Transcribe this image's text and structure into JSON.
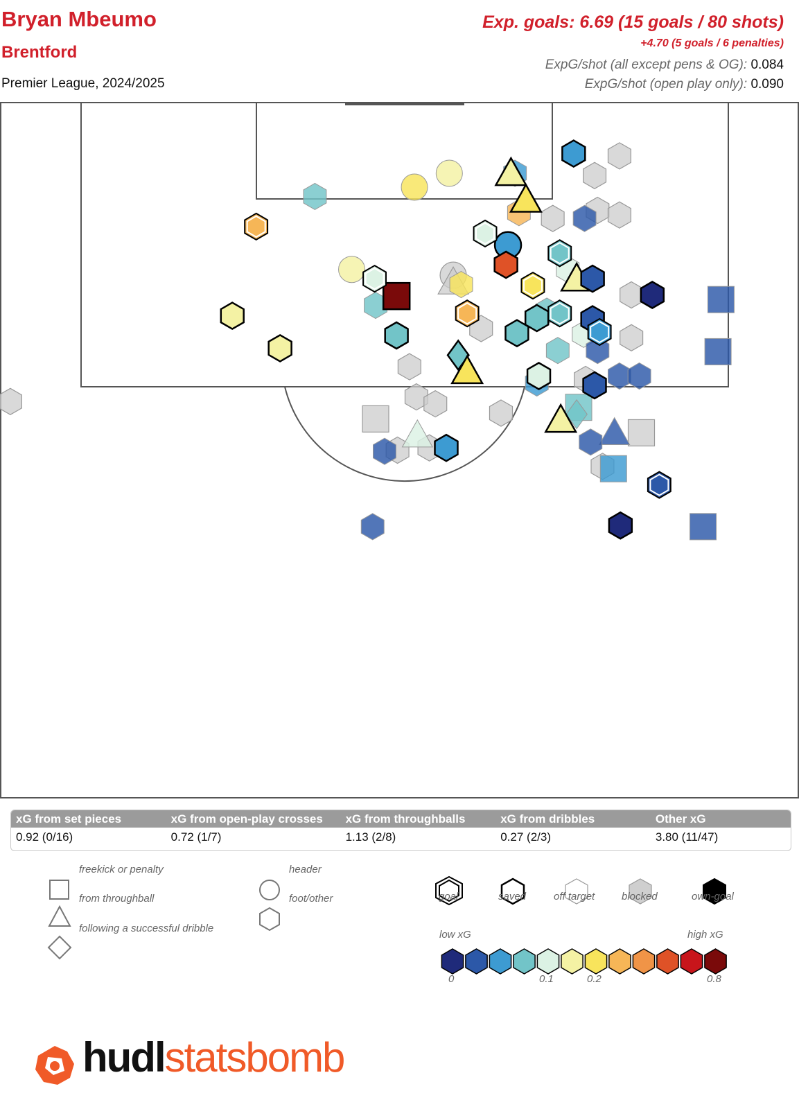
{
  "header": {
    "player": "Bryan Mbeumo",
    "team": "Brentford",
    "competition": "Premier League, 2024/2025",
    "xg_summary": "Exp. goals: 6.69 (15 goals / 80 shots)",
    "penalty_summary": "+4.70 (5 goals / 6 penalties)",
    "rate1_label": "ExpG/shot (all except pens & OG):",
    "rate1_value": "0.084",
    "rate2_label": "ExpG/shot (open play only):",
    "rate2_value": "0.090"
  },
  "stats_table": {
    "headers": [
      "xG from set pieces",
      "xG from open-play crosses",
      "xG from throughballs",
      "xG from dribbles",
      "Other xG"
    ],
    "values": [
      "0.92 (0/16)",
      "0.72 (1/7)",
      "1.13 (2/8)",
      "0.27 (2/3)",
      "3.80 (11/47)"
    ]
  },
  "legend": {
    "shape_types": [
      {
        "icon": "square-icon",
        "label": "freekick or penalty"
      },
      {
        "icon": "triangle-icon",
        "label": "from throughball"
      },
      {
        "icon": "diamond-icon",
        "label": "following a successful dribble"
      },
      {
        "icon": "circle-icon",
        "label": "header"
      },
      {
        "icon": "hexagon-icon",
        "label": "foot/other"
      }
    ],
    "outcomes": [
      "goal",
      "saved",
      "off target",
      "blocked",
      "own-goal"
    ],
    "scale_low": "low xG",
    "scale_high": "high xG",
    "scale_colors": [
      "#1f2a7a",
      "#2c58a8",
      "#3d9bd2",
      "#72c4c8",
      "#dcf2e4",
      "#f4f2a4",
      "#f8e45c",
      "#f6b657",
      "#f09447",
      "#df5227",
      "#c8151b",
      "#7a0a0a"
    ],
    "scale_ticks": [
      "0",
      "0.1",
      "0.2",
      "0.8"
    ]
  },
  "logo": {
    "hudl": "hudl",
    "statsbomb": "statsbomb"
  },
  "chart_data": {
    "type": "scatter",
    "x_axis": "pitch width (0-80)",
    "y_axis": "distance from goal line (0-60)",
    "points": [
      {
        "x": 72.0,
        "y": 21.5,
        "shape": "square",
        "outcome": "offtarget",
        "color": "#2c58a8"
      },
      {
        "x": 70.5,
        "y": 36.6,
        "shape": "square",
        "outcome": "offtarget",
        "color": "#2c58a8"
      },
      {
        "x": 57.5,
        "y": 4.4,
        "shape": "hexagon",
        "outcome": "saved",
        "color": "#3d9bd2"
      },
      {
        "x": 59.6,
        "y": 6.3,
        "shape": "hexagon",
        "outcome": "blocked",
        "color": "#cccccc"
      },
      {
        "x": 62.1,
        "y": 4.6,
        "shape": "hexagon",
        "outcome": "blocked",
        "color": "#cccccc"
      },
      {
        "x": 59.9,
        "y": 9.3,
        "shape": "hexagon",
        "outcome": "blocked",
        "color": "#cccccc"
      },
      {
        "x": 51.2,
        "y": 6.1,
        "shape": "triangle",
        "outcome": "saved",
        "color": "#f4f2a4"
      },
      {
        "x": 52.7,
        "y": 8.4,
        "shape": "triangle",
        "outcome": "saved",
        "color": "#f8e45c"
      },
      {
        "x": 52.0,
        "y": 9.5,
        "shape": "hexagon",
        "outcome": "offtarget",
        "color": "#f6b657"
      },
      {
        "x": 41.5,
        "y": 7.3,
        "shape": "circle",
        "outcome": "offtarget",
        "color": "#f8e45c"
      },
      {
        "x": 45.0,
        "y": 6.1,
        "shape": "circle",
        "outcome": "offtarget",
        "color": "#f4f2a4"
      },
      {
        "x": 31.5,
        "y": 8.1,
        "shape": "hexagon",
        "outcome": "offtarget",
        "color": "#72c4c8"
      },
      {
        "x": 55.4,
        "y": 10.0,
        "shape": "hexagon",
        "outcome": "blocked",
        "color": "#cccccc"
      },
      {
        "x": 58.6,
        "y": 10.0,
        "shape": "hexagon",
        "outcome": "offtarget",
        "color": "#2c58a8"
      },
      {
        "x": 25.6,
        "y": 10.7,
        "shape": "hexagon",
        "outcome": "goal",
        "color": "#f6b657"
      },
      {
        "x": 48.6,
        "y": 11.3,
        "shape": "hexagon",
        "outcome": "goal",
        "color": "#dcf2e4"
      },
      {
        "x": 50.9,
        "y": 12.3,
        "shape": "circle",
        "outcome": "saved",
        "color": "#3d9bd2"
      },
      {
        "x": 56.1,
        "y": 13.0,
        "shape": "hexagon",
        "outcome": "goal",
        "color": "#72c4c8"
      },
      {
        "x": 50.7,
        "y": 14.0,
        "shape": "hexagon",
        "outcome": "saved",
        "color": "#df5227"
      },
      {
        "x": 35.2,
        "y": 14.4,
        "shape": "circle",
        "outcome": "offtarget",
        "color": "#f4f2a4"
      },
      {
        "x": 37.5,
        "y": 15.2,
        "shape": "hexagon",
        "outcome": "goal",
        "color": "#dcf2e4"
      },
      {
        "x": 45.4,
        "y": 14.9,
        "shape": "circle",
        "outcome": "blocked",
        "color": "#cccccc"
      },
      {
        "x": 45.4,
        "y": 15.5,
        "shape": "triangle",
        "outcome": "blocked",
        "color": "#cccccc"
      },
      {
        "x": 46.2,
        "y": 15.7,
        "shape": "hexagon",
        "outcome": "offtarget",
        "color": "#f8e45c"
      },
      {
        "x": 53.4,
        "y": 15.8,
        "shape": "hexagon",
        "outcome": "goal",
        "color": "#f8e45c"
      },
      {
        "x": 57.8,
        "y": 15.2,
        "shape": "triangle",
        "outcome": "saved",
        "color": "#f4f2a4"
      },
      {
        "x": 59.4,
        "y": 15.2,
        "shape": "hexagon",
        "outcome": "saved",
        "color": "#2c58a8"
      },
      {
        "x": 56.9,
        "y": 14.4,
        "shape": "hexagon",
        "outcome": "offtarget",
        "color": "#dcf2e4"
      },
      {
        "x": 63.3,
        "y": 16.6,
        "shape": "hexagon",
        "outcome": "blocked",
        "color": "#cccccc"
      },
      {
        "x": 65.4,
        "y": 16.6,
        "shape": "hexagon",
        "outcome": "saved",
        "color": "#1f2a7a"
      },
      {
        "x": 72.3,
        "y": 17.0,
        "shape": "square",
        "outcome": "offtarget",
        "color": "#2c58a8"
      },
      {
        "x": 37.6,
        "y": 17.5,
        "shape": "hexagon",
        "outcome": "offtarget",
        "color": "#72c4c8"
      },
      {
        "x": 39.7,
        "y": 16.7,
        "shape": "square",
        "outcome": "saved",
        "color": "#7a0a0a"
      },
      {
        "x": 46.8,
        "y": 18.2,
        "shape": "hexagon",
        "outcome": "goal",
        "color": "#f6b657"
      },
      {
        "x": 48.2,
        "y": 19.5,
        "shape": "hexagon",
        "outcome": "blocked",
        "color": "#cccccc"
      },
      {
        "x": 54.8,
        "y": 18.0,
        "shape": "hexagon",
        "outcome": "offtarget",
        "color": "#72c4c8"
      },
      {
        "x": 56.1,
        "y": 18.2,
        "shape": "hexagon",
        "outcome": "goal",
        "color": "#72c4c8"
      },
      {
        "x": 53.8,
        "y": 18.6,
        "shape": "hexagon",
        "outcome": "saved",
        "color": "#72c4c8"
      },
      {
        "x": 51.8,
        "y": 19.9,
        "shape": "hexagon",
        "outcome": "saved",
        "color": "#72c4c8"
      },
      {
        "x": 59.4,
        "y": 18.7,
        "shape": "hexagon",
        "outcome": "saved",
        "color": "#2c58a8"
      },
      {
        "x": 60.1,
        "y": 19.8,
        "shape": "hexagon",
        "outcome": "goal",
        "color": "#3d9bd2"
      },
      {
        "x": 58.5,
        "y": 20.0,
        "shape": "hexagon",
        "outcome": "offtarget",
        "color": "#dcf2e4"
      },
      {
        "x": 59.9,
        "y": 21.4,
        "shape": "hexagon",
        "outcome": "offtarget",
        "color": "#2c58a8"
      },
      {
        "x": 55.9,
        "y": 21.4,
        "shape": "hexagon",
        "outcome": "offtarget",
        "color": "#72c4c8"
      },
      {
        "x": 63.3,
        "y": 20.3,
        "shape": "hexagon",
        "outcome": "blocked",
        "color": "#cccccc"
      },
      {
        "x": 23.2,
        "y": 18.4,
        "shape": "hexagon",
        "outcome": "saved",
        "color": "#f4f2a4"
      },
      {
        "x": 28.0,
        "y": 21.2,
        "shape": "hexagon",
        "outcome": "saved",
        "color": "#f4f2a4"
      },
      {
        "x": 39.7,
        "y": 20.1,
        "shape": "hexagon",
        "outcome": "saved",
        "color": "#72c4c8"
      },
      {
        "x": 41.0,
        "y": 22.8,
        "shape": "hexagon",
        "outcome": "blocked",
        "color": "#cccccc"
      },
      {
        "x": 45.9,
        "y": 21.8,
        "shape": "diamond",
        "outcome": "saved",
        "color": "#72c4c8"
      },
      {
        "x": 46.8,
        "y": 23.2,
        "shape": "triangle",
        "outcome": "saved",
        "color": "#f8e45c"
      },
      {
        "x": 54.0,
        "y": 23.6,
        "shape": "hexagon",
        "outcome": "saved",
        "color": "#dcf2e4"
      },
      {
        "x": 53.8,
        "y": 24.2,
        "shape": "hexagon",
        "outcome": "offtarget",
        "color": "#3d9bd2"
      },
      {
        "x": 62.1,
        "y": 23.6,
        "shape": "hexagon",
        "outcome": "offtarget",
        "color": "#2c58a8"
      },
      {
        "x": 64.1,
        "y": 23.6,
        "shape": "hexagon",
        "outcome": "offtarget",
        "color": "#2c58a8"
      },
      {
        "x": 59.6,
        "y": 24.4,
        "shape": "hexagon",
        "outcome": "saved",
        "color": "#2c58a8"
      },
      {
        "x": 58.7,
        "y": 23.9,
        "shape": "hexagon",
        "outcome": "blocked",
        "color": "#cccccc"
      },
      {
        "x": 41.7,
        "y": 25.4,
        "shape": "hexagon",
        "outcome": "blocked",
        "color": "#cccccc"
      },
      {
        "x": 43.6,
        "y": 26.0,
        "shape": "hexagon",
        "outcome": "blocked",
        "color": "#cccccc"
      },
      {
        "x": 0.9,
        "y": 25.8,
        "shape": "hexagon",
        "outcome": "blocked",
        "color": "#cccccc"
      },
      {
        "x": 37.6,
        "y": 27.3,
        "shape": "square",
        "outcome": "blocked",
        "color": "#cccccc"
      },
      {
        "x": 50.2,
        "y": 26.8,
        "shape": "hexagon",
        "outcome": "blocked",
        "color": "#cccccc"
      },
      {
        "x": 56.2,
        "y": 27.4,
        "shape": "triangle",
        "outcome": "saved",
        "color": "#f4f2a4"
      },
      {
        "x": 58.0,
        "y": 26.3,
        "shape": "square",
        "outcome": "offtarget",
        "color": "#72c4c8"
      },
      {
        "x": 57.8,
        "y": 26.9,
        "shape": "diamond",
        "outcome": "offtarget",
        "color": "#72c4c8"
      },
      {
        "x": 41.8,
        "y": 28.7,
        "shape": "triangle",
        "outcome": "offtarget",
        "color": "#dcf2e4"
      },
      {
        "x": 61.6,
        "y": 28.5,
        "shape": "triangle",
        "outcome": "offtarget",
        "color": "#2c58a8"
      },
      {
        "x": 64.3,
        "y": 28.5,
        "shape": "square",
        "outcome": "blocked",
        "color": "#cccccc"
      },
      {
        "x": 59.2,
        "y": 29.3,
        "shape": "hexagon",
        "outcome": "offtarget",
        "color": "#2c58a8"
      },
      {
        "x": 39.8,
        "y": 30.0,
        "shape": "hexagon",
        "outcome": "blocked",
        "color": "#cccccc"
      },
      {
        "x": 43.0,
        "y": 29.8,
        "shape": "hexagon",
        "outcome": "blocked",
        "color": "#cccccc"
      },
      {
        "x": 38.5,
        "y": 30.1,
        "shape": "hexagon",
        "outcome": "offtarget",
        "color": "#2c58a8"
      },
      {
        "x": 44.7,
        "y": 29.8,
        "shape": "hexagon",
        "outcome": "saved",
        "color": "#3d9bd2"
      },
      {
        "x": 60.4,
        "y": 31.4,
        "shape": "hexagon",
        "outcome": "blocked",
        "color": "#cccccc"
      },
      {
        "x": 61.5,
        "y": 31.6,
        "shape": "square",
        "outcome": "offtarget",
        "color": "#3d9bd2"
      },
      {
        "x": 66.1,
        "y": 33.0,
        "shape": "hexagon",
        "outcome": "goal",
        "color": "#2c58a8"
      },
      {
        "x": 37.3,
        "y": 36.6,
        "shape": "hexagon",
        "outcome": "offtarget",
        "color": "#2c58a8"
      },
      {
        "x": 62.2,
        "y": 36.5,
        "shape": "hexagon",
        "outcome": "saved",
        "color": "#1f2a7a"
      },
      {
        "x": 51.6,
        "y": 6.1,
        "shape": "hexagon",
        "outcome": "offtarget",
        "color": "#3d9bd2"
      },
      {
        "x": 62.1,
        "y": 9.7,
        "shape": "hexagon",
        "outcome": "blocked",
        "color": "#cccccc"
      }
    ]
  }
}
